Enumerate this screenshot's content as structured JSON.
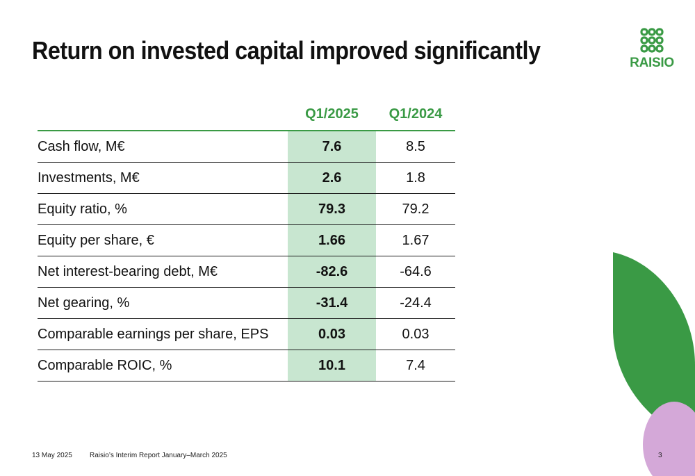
{
  "slide": {
    "title": "Return on invested capital improved significantly",
    "page_number": "3"
  },
  "logo": {
    "text": "RAISIO",
    "color": "#3a9a45"
  },
  "table": {
    "columns": [
      "",
      "Q1/2025",
      "Q1/2024"
    ],
    "rows": [
      {
        "label": "Cash flow, M€",
        "q1_2025": "7.6",
        "q1_2024": "8.5"
      },
      {
        "label": "Investments, M€",
        "q1_2025": "2.6",
        "q1_2024": "1.8"
      },
      {
        "label": "Equity ratio, %",
        "q1_2025": "79.3",
        "q1_2024": "79.2"
      },
      {
        "label": "Equity per share, €",
        "q1_2025": "1.66",
        "q1_2024": "1.67"
      },
      {
        "label": "Net interest-bearing debt, M€",
        "q1_2025": "-82.6",
        "q1_2024": "-64.6"
      },
      {
        "label": "Net gearing, %",
        "q1_2025": "-31.4",
        "q1_2024": "-24.4"
      },
      {
        "label": "Comparable earnings per share, EPS",
        "q1_2025": "0.03",
        "q1_2024": "0.03"
      },
      {
        "label": "Comparable ROIC, %",
        "q1_2025": "10.1",
        "q1_2024": "7.4"
      }
    ],
    "highlight_color": "#c8e6d0"
  },
  "footer": {
    "date": "13 May 2025",
    "report": "Raisio’s Interim Report January–March 2025"
  },
  "colors": {
    "brand_green": "#3a9a45",
    "decor_purple": "#d4a8d8"
  }
}
